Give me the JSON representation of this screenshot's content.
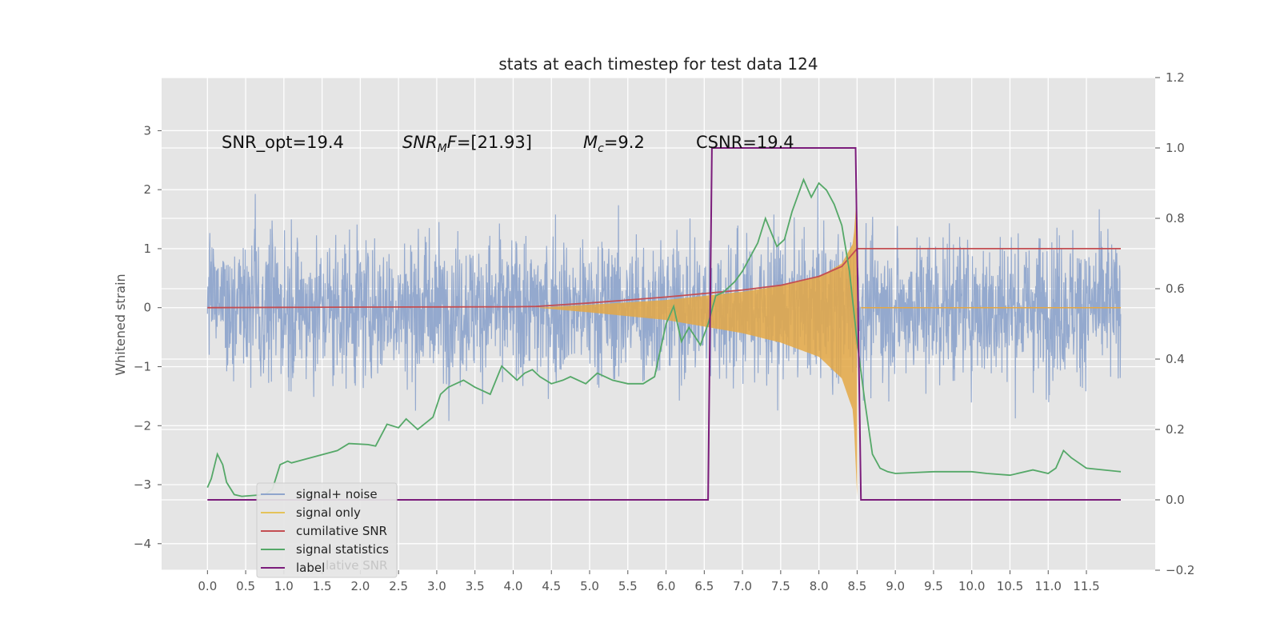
{
  "chart_data": {
    "type": "line",
    "title": "stats at each timestep for test data 124",
    "xlabel": "",
    "ylabel": "Whitened strain",
    "y2label": "",
    "x_ticks": [
      "0.0",
      "0.5",
      "1.0",
      "1.5",
      "2.0",
      "2.5",
      "3.0",
      "3.5",
      "4.0",
      "4.5",
      "5.0",
      "5.5",
      "6.0",
      "6.5",
      "7.0",
      "7.5",
      "8.0",
      "8.5",
      "9.0",
      "9.5",
      "10.0",
      "10.5",
      "11.0",
      "11.5"
    ],
    "y_ticks": [
      "−4",
      "−3",
      "−2",
      "−1",
      "0",
      "1",
      "2",
      "3"
    ],
    "y2_ticks": [
      "−0.2",
      "0.0",
      "0.2",
      "0.4",
      "0.6",
      "0.8",
      "1.0",
      "1.2"
    ],
    "xlim": [
      -0.6,
      12.4
    ],
    "ylim": [
      -4.45,
      3.9
    ],
    "y2lim": [
      -0.2,
      1.2
    ],
    "grid": true,
    "legend_position": "lower-left",
    "annotations": {
      "snr_opt": "SNR_opt=19.4",
      "snr_mf_name": "SNR",
      "snr_mf_sub": "M",
      "snr_mf_name2": "F",
      "snr_mf_value": "=[21.93]",
      "mc_name": "M",
      "mc_sub": "c",
      "mc_value": "=9.2",
      "csnr": "CSNR=19.4"
    },
    "series": [
      {
        "name": "signal+ noise",
        "color": "#8fa5cc",
        "axis": "left",
        "kind": "noise",
        "note_range": [
          -2.2,
          2.2
        ]
      },
      {
        "name": "signal only",
        "color": "#e4a845",
        "axis": "left",
        "kind": "chirp",
        "envelope": [
          [
            4.3,
            0.0
          ],
          [
            5.0,
            0.05
          ],
          [
            5.5,
            0.09
          ],
          [
            6.0,
            0.13
          ],
          [
            6.5,
            0.2
          ],
          [
            7.0,
            0.27
          ],
          [
            7.5,
            0.37
          ],
          [
            8.0,
            0.52
          ],
          [
            8.3,
            0.75
          ],
          [
            8.45,
            1.1
          ],
          [
            8.5,
            2.0
          ]
        ]
      },
      {
        "name": "cumilative SNR",
        "color": "#c44e52",
        "axis": "left",
        "kind": "line",
        "points": [
          [
            0,
            0
          ],
          [
            1,
            0.005
          ],
          [
            2,
            0.01
          ],
          [
            3,
            0.012
          ],
          [
            4,
            0.015
          ],
          [
            4.3,
            0.02
          ],
          [
            5,
            0.08
          ],
          [
            5.5,
            0.13
          ],
          [
            6,
            0.18
          ],
          [
            6.5,
            0.24
          ],
          [
            7,
            0.3
          ],
          [
            7.5,
            0.38
          ],
          [
            8,
            0.53
          ],
          [
            8.3,
            0.7
          ],
          [
            8.5,
            1.0
          ],
          [
            11.95,
            1.0
          ]
        ]
      },
      {
        "name": "signal statistics",
        "color": "#55a868",
        "axis": "right",
        "kind": "line",
        "points": [
          [
            0,
            0.035
          ],
          [
            0.05,
            0.06
          ],
          [
            0.13,
            0.13
          ],
          [
            0.2,
            0.1
          ],
          [
            0.25,
            0.05
          ],
          [
            0.35,
            0.015
          ],
          [
            0.45,
            0.01
          ],
          [
            0.75,
            0.015
          ],
          [
            0.85,
            0.03
          ],
          [
            0.95,
            0.1
          ],
          [
            1.05,
            0.11
          ],
          [
            1.1,
            0.105
          ],
          [
            1.7,
            0.14
          ],
          [
            1.85,
            0.16
          ],
          [
            2.1,
            0.157
          ],
          [
            2.2,
            0.153
          ],
          [
            2.35,
            0.215
          ],
          [
            2.5,
            0.205
          ],
          [
            2.6,
            0.23
          ],
          [
            2.75,
            0.2
          ],
          [
            2.95,
            0.235
          ],
          [
            3.05,
            0.3
          ],
          [
            3.15,
            0.32
          ],
          [
            3.25,
            0.33
          ],
          [
            3.35,
            0.34
          ],
          [
            3.5,
            0.32
          ],
          [
            3.6,
            0.31
          ],
          [
            3.7,
            0.3
          ],
          [
            3.85,
            0.38
          ],
          [
            3.95,
            0.36
          ],
          [
            4.05,
            0.34
          ],
          [
            4.15,
            0.36
          ],
          [
            4.25,
            0.37
          ],
          [
            4.35,
            0.35
          ],
          [
            4.5,
            0.33
          ],
          [
            4.65,
            0.34
          ],
          [
            4.75,
            0.35
          ],
          [
            4.95,
            0.33
          ],
          [
            5.1,
            0.36
          ],
          [
            5.3,
            0.34
          ],
          [
            5.5,
            0.33
          ],
          [
            5.7,
            0.33
          ],
          [
            5.85,
            0.35
          ],
          [
            6.0,
            0.5
          ],
          [
            6.1,
            0.55
          ],
          [
            6.2,
            0.45
          ],
          [
            6.3,
            0.49
          ],
          [
            6.45,
            0.44
          ],
          [
            6.55,
            0.5
          ],
          [
            6.65,
            0.58
          ],
          [
            6.75,
            0.59
          ],
          [
            6.9,
            0.62
          ],
          [
            7.0,
            0.65
          ],
          [
            7.2,
            0.73
          ],
          [
            7.3,
            0.8
          ],
          [
            7.45,
            0.72
          ],
          [
            7.55,
            0.74
          ],
          [
            7.65,
            0.82
          ],
          [
            7.8,
            0.91
          ],
          [
            7.9,
            0.86
          ],
          [
            8.0,
            0.9
          ],
          [
            8.1,
            0.88
          ],
          [
            8.2,
            0.84
          ],
          [
            8.3,
            0.78
          ],
          [
            8.4,
            0.65
          ],
          [
            8.5,
            0.45
          ],
          [
            8.6,
            0.28
          ],
          [
            8.7,
            0.13
          ],
          [
            8.8,
            0.09
          ],
          [
            8.9,
            0.08
          ],
          [
            9.0,
            0.075
          ],
          [
            9.5,
            0.08
          ],
          [
            10.0,
            0.08
          ],
          [
            10.2,
            0.075
          ],
          [
            10.5,
            0.07
          ],
          [
            10.8,
            0.085
          ],
          [
            11.0,
            0.075
          ],
          [
            11.1,
            0.09
          ],
          [
            11.2,
            0.14
          ],
          [
            11.3,
            0.12
          ],
          [
            11.5,
            0.09
          ],
          [
            11.95,
            0.08
          ]
        ]
      },
      {
        "name": "label",
        "color": "#7b1c7b",
        "axis": "right",
        "kind": "step",
        "points": [
          [
            0,
            0
          ],
          [
            6.55,
            0
          ],
          [
            6.6,
            1
          ],
          [
            8.48,
            1
          ],
          [
            8.55,
            0
          ],
          [
            11.95,
            0
          ]
        ]
      }
    ],
    "legend": [
      {
        "label": "signal+ noise",
        "color": "#8fa5cc"
      },
      {
        "label": "signal only",
        "color": "#e4c35a"
      },
      {
        "label": "cumilative SNR",
        "color": "#c44e52"
      },
      {
        "label": "signal statistics",
        "color": "#55a868"
      },
      {
        "label": "label",
        "color": "#7b1c7b"
      }
    ],
    "legend_ghost_text": "lative SNR"
  }
}
